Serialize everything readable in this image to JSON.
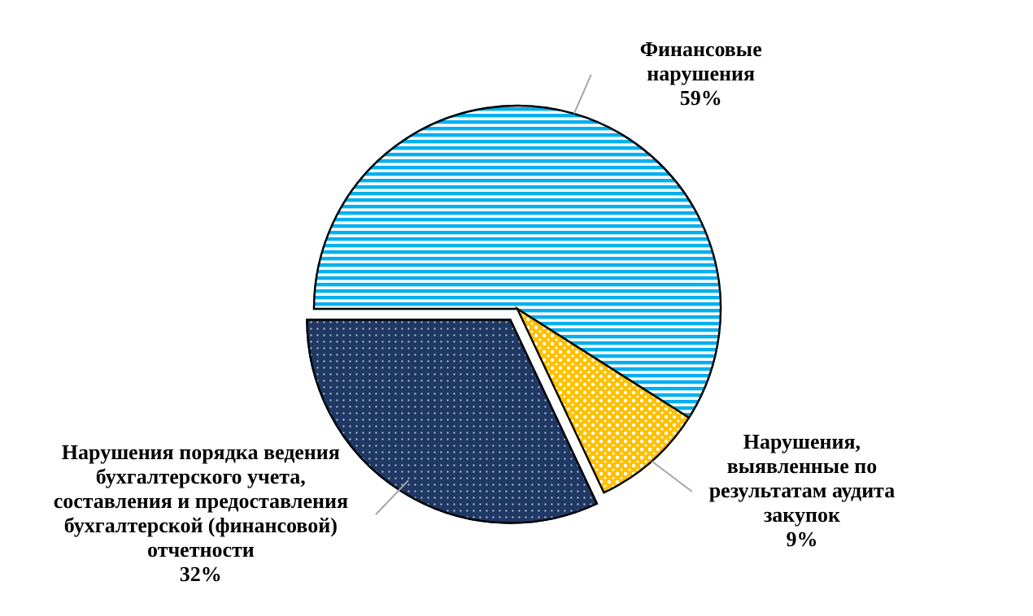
{
  "chart_data": {
    "type": "pie",
    "categories": [
      "Финансовые нарушения",
      "Нарушения, выявленные по результатам аудита закупок",
      "Нарушения порядка ведения бухгалтерского учета, составления и предоставления бухгалтерской (финансовой) отчетности"
    ],
    "values": [
      59,
      9,
      32
    ],
    "value_labels": [
      "59%",
      "9%",
      "32%"
    ],
    "colors": [
      "#00b0f0",
      "#ffc000",
      "#1f3864"
    ]
  }
}
